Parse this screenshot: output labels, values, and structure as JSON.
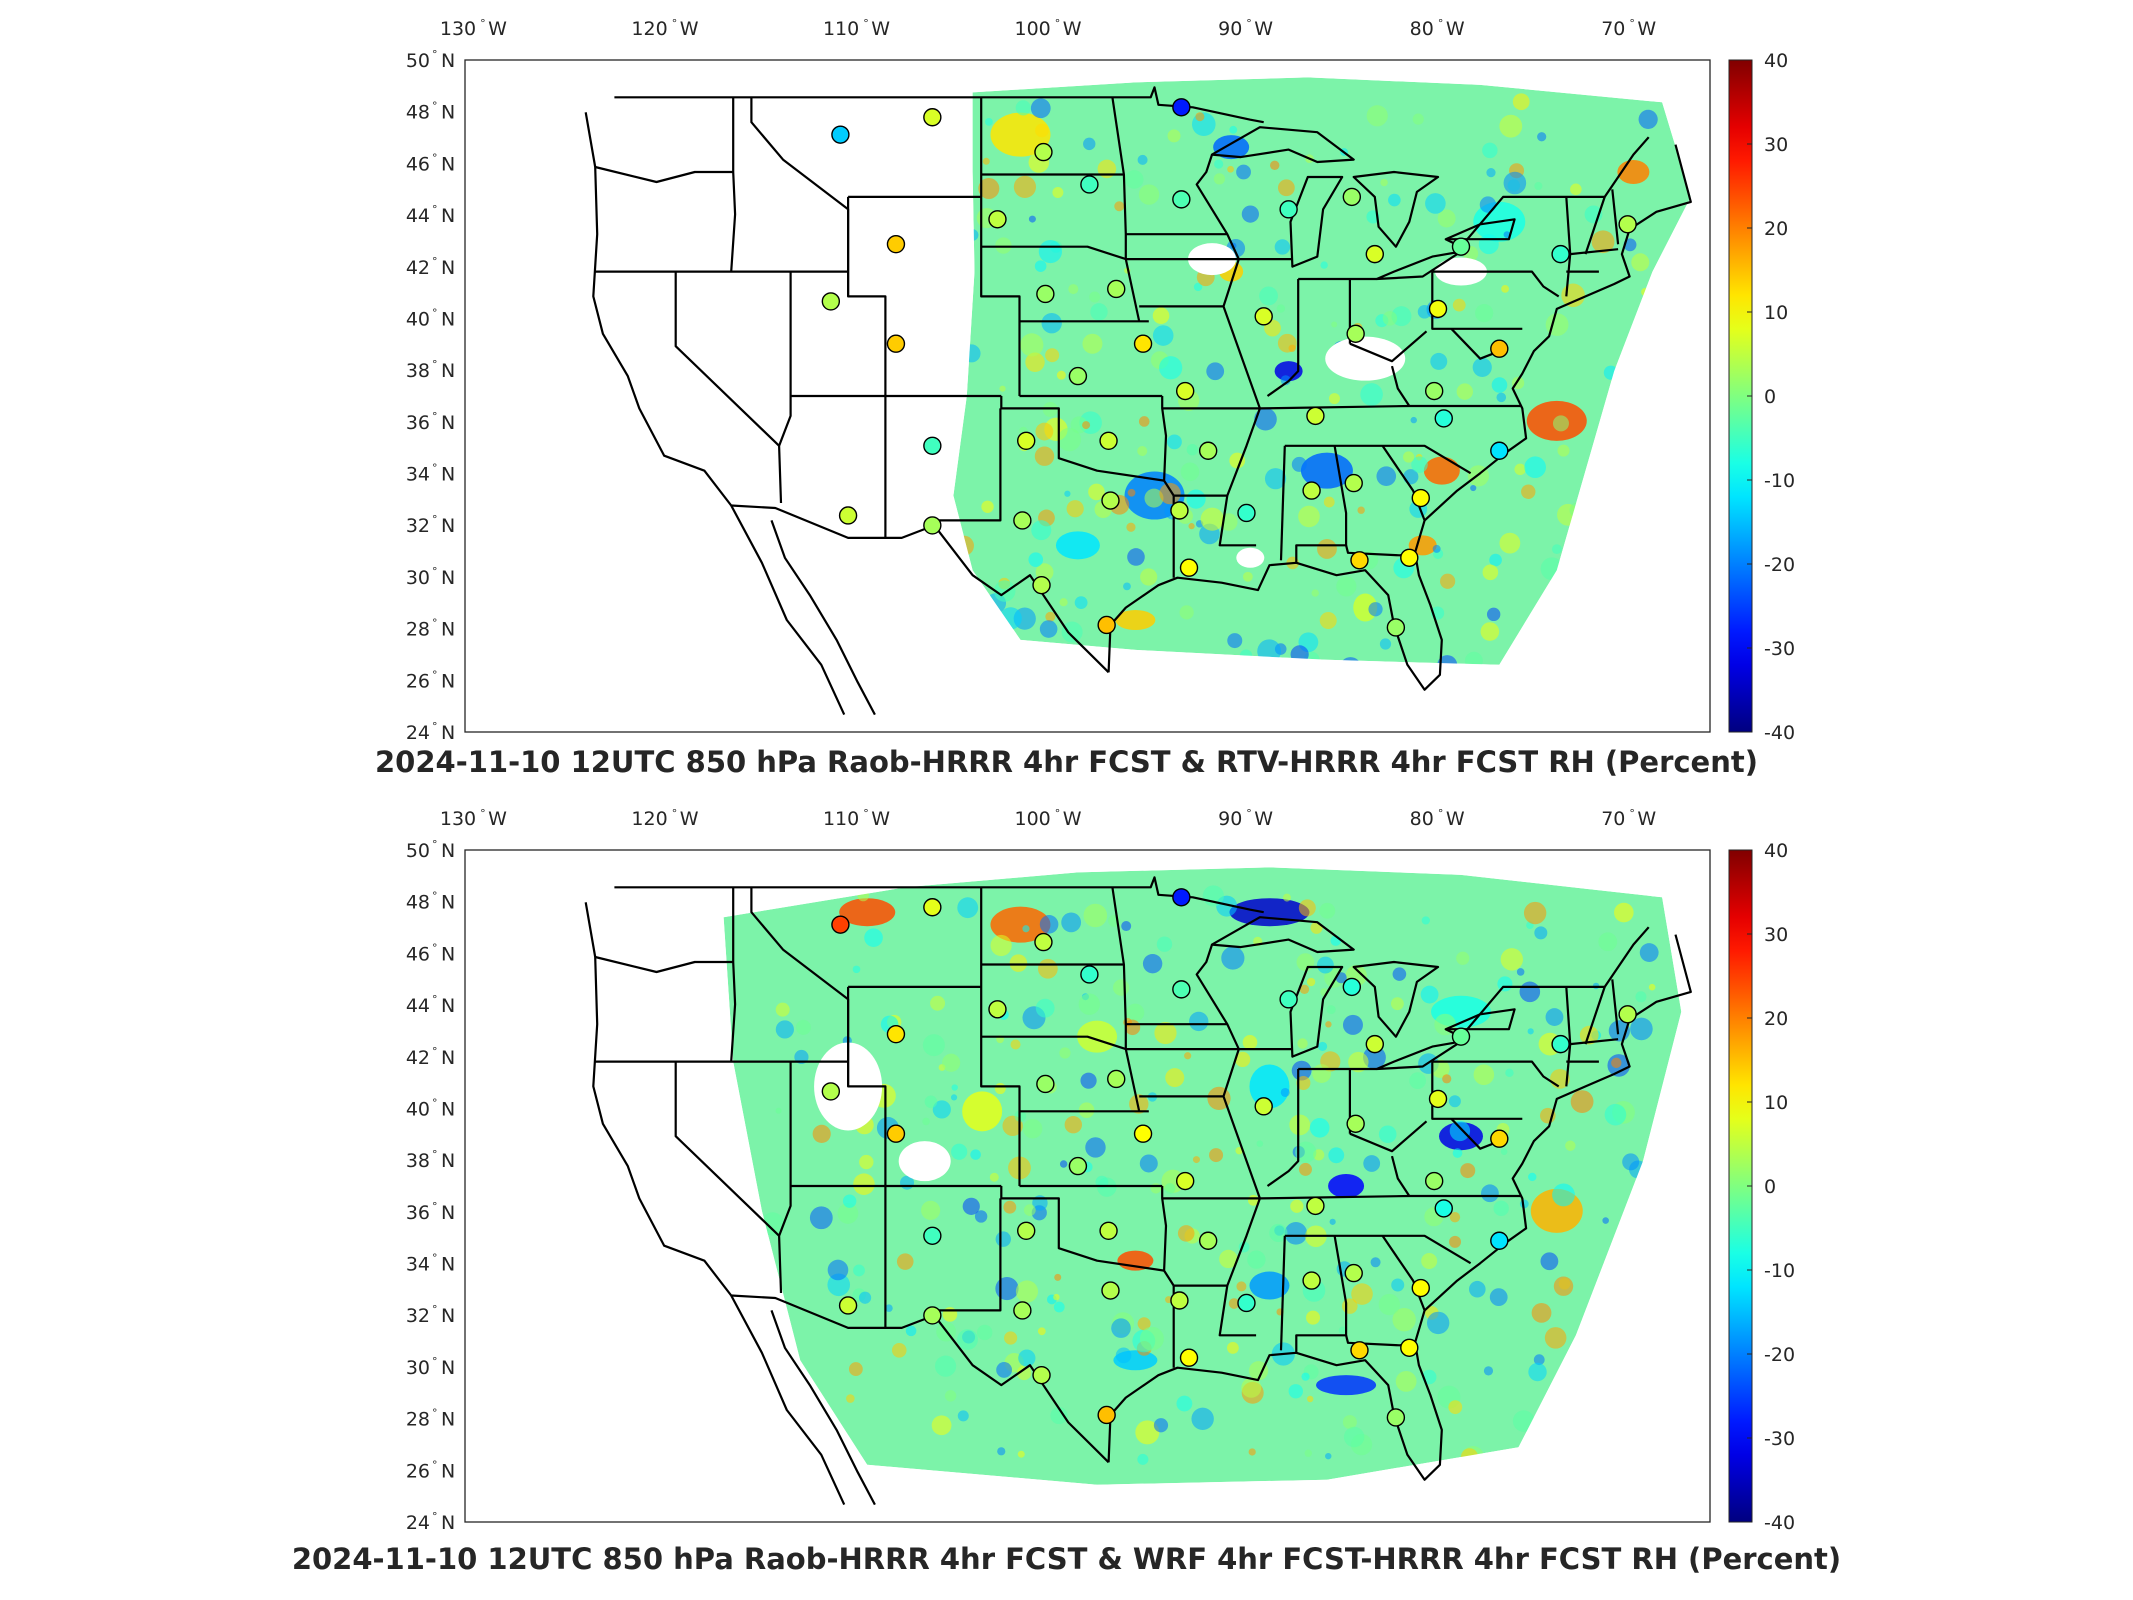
{
  "lon_labels": [
    "130",
    "120",
    "110",
    "100",
    "90",
    "80",
    "70"
  ],
  "lon_suffix": "W",
  "lat_labels": [
    "50",
    "48",
    "46",
    "44",
    "42",
    "40",
    "38",
    "36",
    "34",
    "32",
    "30",
    "28",
    "26",
    "24"
  ],
  "lat_suffix": "N",
  "colorbar": {
    "ticks": [
      "40",
      "30",
      "20",
      "10",
      "0",
      "-10",
      "-20",
      "-30",
      "-40"
    ],
    "range": [
      -40,
      40
    ],
    "colormap": "jet"
  },
  "panels": [
    {
      "id": "top",
      "title": "2024-11-10 12UTC 850 hPa Raob-HRRR 4hr FCST & RTV-HRRR 4hr FCST RH (Percent)"
    },
    {
      "id": "bottom",
      "title": "2024-11-10 12UTC 850 hPa Raob-HRRR 4hr FCST & WRF 4hr FCST-HRRR 4hr FCST RH (Percent)"
    }
  ],
  "stations": [
    {
      "lon": -111.4,
      "lat": 47.5,
      "top": -14,
      "bottom": 25
    },
    {
      "lon": -106.6,
      "lat": 48.2,
      "top": 7,
      "bottom": 8
    },
    {
      "lon": -100.8,
      "lat": 46.8,
      "top": 4,
      "bottom": 5
    },
    {
      "lon": -93.6,
      "lat": 48.6,
      "top": -28,
      "bottom": -28
    },
    {
      "lon": -98.4,
      "lat": 45.5,
      "top": -5,
      "bottom": -6
    },
    {
      "lon": -103.2,
      "lat": 44.1,
      "top": 5,
      "bottom": 5
    },
    {
      "lon": -108.5,
      "lat": 43.1,
      "top": 14,
      "bottom": 12
    },
    {
      "lon": -93.6,
      "lat": 44.9,
      "top": -4,
      "bottom": -4
    },
    {
      "lon": -88.0,
      "lat": 44.5,
      "top": -5,
      "bottom": -5
    },
    {
      "lon": -84.7,
      "lat": 45.0,
      "top": 2,
      "bottom": -7
    },
    {
      "lon": -83.5,
      "lat": 42.7,
      "top": 7,
      "bottom": 6
    },
    {
      "lon": -79.0,
      "lat": 43.0,
      "top": -2,
      "bottom": -2
    },
    {
      "lon": -73.8,
      "lat": 42.7,
      "top": -6,
      "bottom": -6
    },
    {
      "lon": -70.3,
      "lat": 43.9,
      "top": 4,
      "bottom": 4
    },
    {
      "lon": -111.9,
      "lat": 40.8,
      "top": 4,
      "bottom": 4
    },
    {
      "lon": -100.7,
      "lat": 41.1,
      "top": 2,
      "bottom": 2
    },
    {
      "lon": -97.0,
      "lat": 41.3,
      "top": 3,
      "bottom": 3
    },
    {
      "lon": -89.3,
      "lat": 40.2,
      "top": 7,
      "bottom": 6
    },
    {
      "lon": -80.2,
      "lat": 40.5,
      "top": 9,
      "bottom": 8
    },
    {
      "lon": -108.5,
      "lat": 39.1,
      "top": 14,
      "bottom": 14
    },
    {
      "lon": -99.0,
      "lat": 37.8,
      "top": 2,
      "bottom": 2
    },
    {
      "lon": -95.6,
      "lat": 39.1,
      "top": 12,
      "bottom": 10
    },
    {
      "lon": -93.4,
      "lat": 37.2,
      "top": 7,
      "bottom": 7
    },
    {
      "lon": -86.6,
      "lat": 36.2,
      "top": 6,
      "bottom": 5
    },
    {
      "lon": -84.5,
      "lat": 39.5,
      "top": 3,
      "bottom": 3
    },
    {
      "lon": -80.4,
      "lat": 37.2,
      "top": 2,
      "bottom": 2
    },
    {
      "lon": -77.0,
      "lat": 38.9,
      "top": 15,
      "bottom": 13
    },
    {
      "lon": -79.9,
      "lat": 36.1,
      "top": -7,
      "bottom": -8
    },
    {
      "lon": -77.0,
      "lat": 34.8,
      "top": -12,
      "bottom": -12
    },
    {
      "lon": -106.6,
      "lat": 35.0,
      "top": -5,
      "bottom": -5
    },
    {
      "lon": -101.7,
      "lat": 35.2,
      "top": 7,
      "bottom": 4
    },
    {
      "lon": -97.4,
      "lat": 35.2,
      "top": 6,
      "bottom": 5
    },
    {
      "lon": -92.2,
      "lat": 34.8,
      "top": 3,
      "bottom": 3
    },
    {
      "lon": -111.0,
      "lat": 32.2,
      "top": 6,
      "bottom": 6
    },
    {
      "lon": -106.6,
      "lat": 31.8,
      "top": 3,
      "bottom": 3
    },
    {
      "lon": -101.9,
      "lat": 32.0,
      "top": 3,
      "bottom": 3
    },
    {
      "lon": -97.3,
      "lat": 32.8,
      "top": 4,
      "bottom": 4
    },
    {
      "lon": -93.7,
      "lat": 32.4,
      "top": 5,
      "bottom": 5
    },
    {
      "lon": -90.2,
      "lat": 32.3,
      "top": -6,
      "bottom": -6
    },
    {
      "lon": -86.8,
      "lat": 33.2,
      "top": 5,
      "bottom": 5
    },
    {
      "lon": -84.6,
      "lat": 33.5,
      "top": 4,
      "bottom": 4
    },
    {
      "lon": -81.1,
      "lat": 32.9,
      "top": 10,
      "bottom": 10
    },
    {
      "lon": -81.7,
      "lat": 30.5,
      "top": 10,
      "bottom": 10
    },
    {
      "lon": -84.3,
      "lat": 30.4,
      "top": 13,
      "bottom": 13
    },
    {
      "lon": -93.2,
      "lat": 30.1,
      "top": 10,
      "bottom": 10
    },
    {
      "lon": -100.9,
      "lat": 29.4,
      "top": 4,
      "bottom": 4
    },
    {
      "lon": -97.5,
      "lat": 27.8,
      "top": 15,
      "bottom": 15
    },
    {
      "lon": -82.4,
      "lat": 27.7,
      "top": 2,
      "bottom": 2
    }
  ]
}
